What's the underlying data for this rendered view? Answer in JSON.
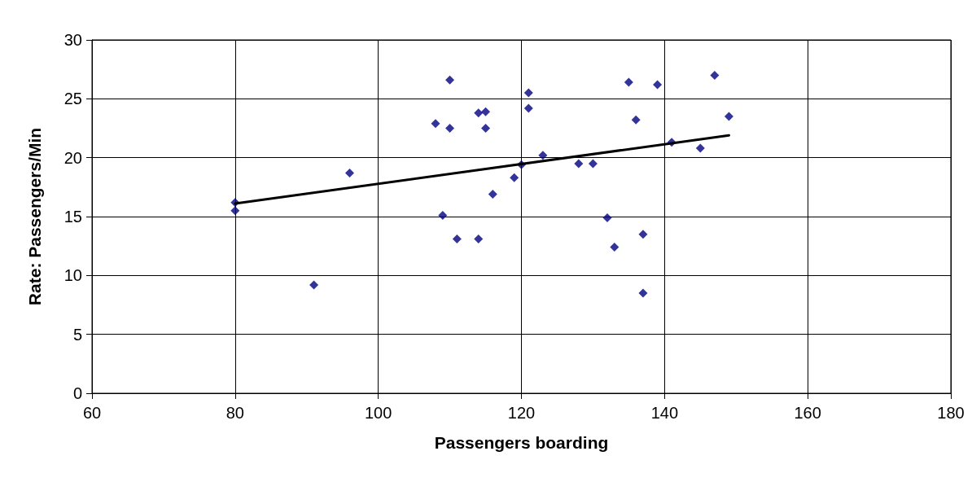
{
  "chart_data": {
    "type": "scatter",
    "xlabel": "Passengers boarding",
    "ylabel": "Rate: Passengers/Min",
    "xlim": [
      60,
      180
    ],
    "xticks": [
      60,
      80,
      100,
      120,
      140,
      160,
      180
    ],
    "ylim": [
      0,
      30
    ],
    "yticks": [
      0,
      5,
      10,
      15,
      20,
      25,
      30
    ],
    "grid": true,
    "series": [
      {
        "color": "#000080",
        "marker": "diamond",
        "x": [
          80,
          80,
          91,
          96,
          108,
          110,
          110,
          109,
          111,
          114,
          115,
          115,
          114,
          116,
          119,
          120,
          121,
          121,
          123,
          128,
          130,
          132,
          133,
          135,
          136,
          137,
          137,
          139,
          141,
          145,
          147,
          149
        ],
        "values": [
          16.2,
          15.5,
          9.2,
          18.7,
          22.9,
          26.6,
          22.5,
          15.1,
          13.1,
          23.8,
          23.9,
          22.5,
          13.1,
          16.9,
          18.3,
          19.4,
          25.5,
          24.2,
          20.2,
          19.5,
          19.5,
          14.9,
          12.4,
          26.4,
          23.2,
          13.5,
          8.5,
          26.2,
          21.3,
          20.8,
          27.0,
          23.5
        ]
      },
      {
        "type": "line",
        "color": "#000000",
        "marker": "none",
        "line_style": "solid",
        "x": [
          80,
          149
        ],
        "values": [
          16.1,
          21.9
        ]
      }
    ]
  }
}
